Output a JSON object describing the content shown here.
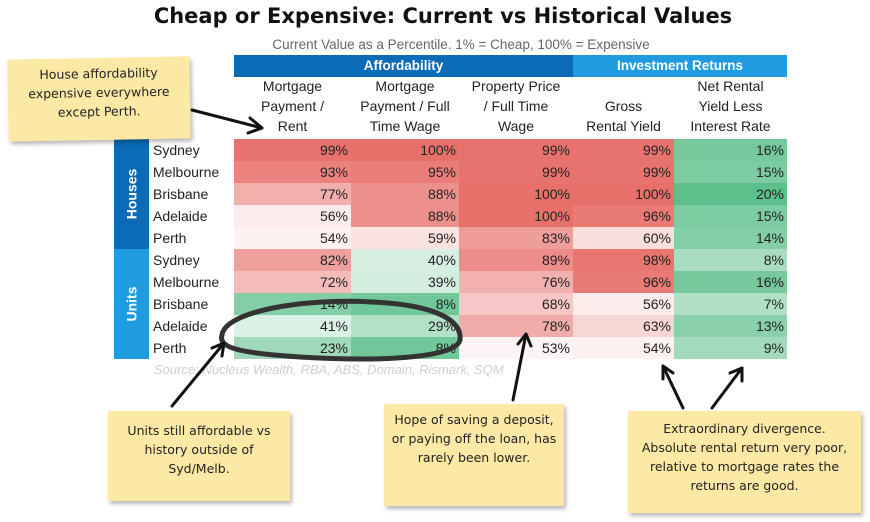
{
  "colors": {
    "header_blue": "#0b6bb6",
    "header_light_blue": "#1f9be0",
    "high_red": "#e8706b",
    "low_white": "#ffffff",
    "green": "#5dbf8a",
    "note_yellow": "#fde9a6"
  },
  "notes": {
    "house": "House affordability expensive everywhere except Perth.",
    "units": "Units still affordable vs history outside of Syd/Melb.",
    "deposit": "Hope of saving a deposit, or paying off the loan, has rarely been lower.",
    "divergence": "Extraordinary divergence. Absolute rental return very poor, relative to mortgage rates the returns are good."
  },
  "chart_data": {
    "type": "table",
    "title": "Cheap or Expensive: Current vs Historical Values",
    "subtitle": "Current Value as a Percentile. 1% = Cheap, 100% = Expensive",
    "source": "Source: Nucleus Wealth, RBA, ABS, Domain, Rismark, SQM",
    "column_groups": [
      {
        "name": "Affordability",
        "span": 3
      },
      {
        "name": "Investment Returns",
        "span": 2
      }
    ],
    "columns": [
      [
        "Mortgage",
        "Payment /",
        "Rent"
      ],
      [
        "Mortgage",
        "Payment / Full",
        "Time Wage"
      ],
      [
        "Property Price",
        "/ Full Time",
        "Wage"
      ],
      [
        "Gross",
        "Rental Yield"
      ],
      [
        "Net Rental",
        "Yield Less",
        "Interest Rate"
      ]
    ],
    "row_groups": [
      {
        "name": "Houses",
        "rows": [
          "Sydney",
          "Melbourne",
          "Brisbane",
          "Adelaide",
          "Perth"
        ]
      },
      {
        "name": "Units",
        "rows": [
          "Sydney",
          "Melbourne",
          "Brisbane",
          "Adelaide",
          "Perth"
        ]
      }
    ],
    "values": [
      [
        99,
        100,
        99,
        99,
        16
      ],
      [
        93,
        95,
        99,
        99,
        15
      ],
      [
        77,
        88,
        100,
        100,
        20
      ],
      [
        56,
        88,
        100,
        96,
        15
      ],
      [
        54,
        59,
        83,
        60,
        14
      ],
      [
        82,
        40,
        89,
        98,
        8
      ],
      [
        72,
        39,
        76,
        96,
        16
      ],
      [
        14,
        8,
        68,
        56,
        7
      ],
      [
        41,
        29,
        78,
        63,
        13
      ],
      [
        23,
        8,
        53,
        54,
        9
      ]
    ],
    "value_suffix": "%"
  }
}
